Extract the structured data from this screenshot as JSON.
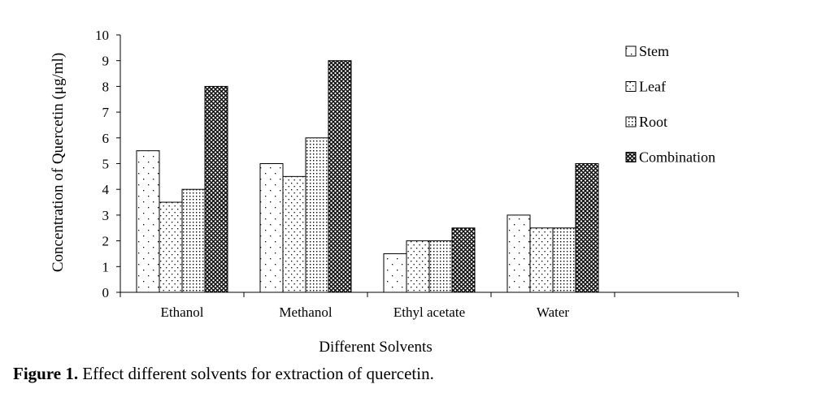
{
  "chart_data": {
    "type": "bar",
    "categories": [
      "Ethanol",
      "Methanol",
      "Ethyl acetate",
      "Water"
    ],
    "series": [
      {
        "name": "Stem",
        "values": [
          5.5,
          5,
          1.5,
          3
        ],
        "pattern": "sparse-dots"
      },
      {
        "name": "Leaf",
        "values": [
          3.5,
          4.5,
          2,
          2.5
        ],
        "pattern": "medium-dots"
      },
      {
        "name": "Root",
        "values": [
          4,
          6,
          2,
          2.5
        ],
        "pattern": "dense-dots"
      },
      {
        "name": "Combination",
        "values": [
          8,
          9,
          2.5,
          5
        ],
        "pattern": "crosshatch"
      }
    ],
    "xlabel": "Different Solvents",
    "ylabel": "Concentration of Quercetin (μg/ml)",
    "ylim": [
      0,
      10
    ],
    "yticks": [
      "0",
      "1",
      "2",
      "3",
      "4",
      "5",
      "6",
      "7",
      "8",
      "9",
      "10"
    ],
    "grid": false,
    "legend_position": "right"
  },
  "caption": {
    "label": "Figure 1.",
    "text": " Effect different solvents for extraction of quercetin."
  }
}
